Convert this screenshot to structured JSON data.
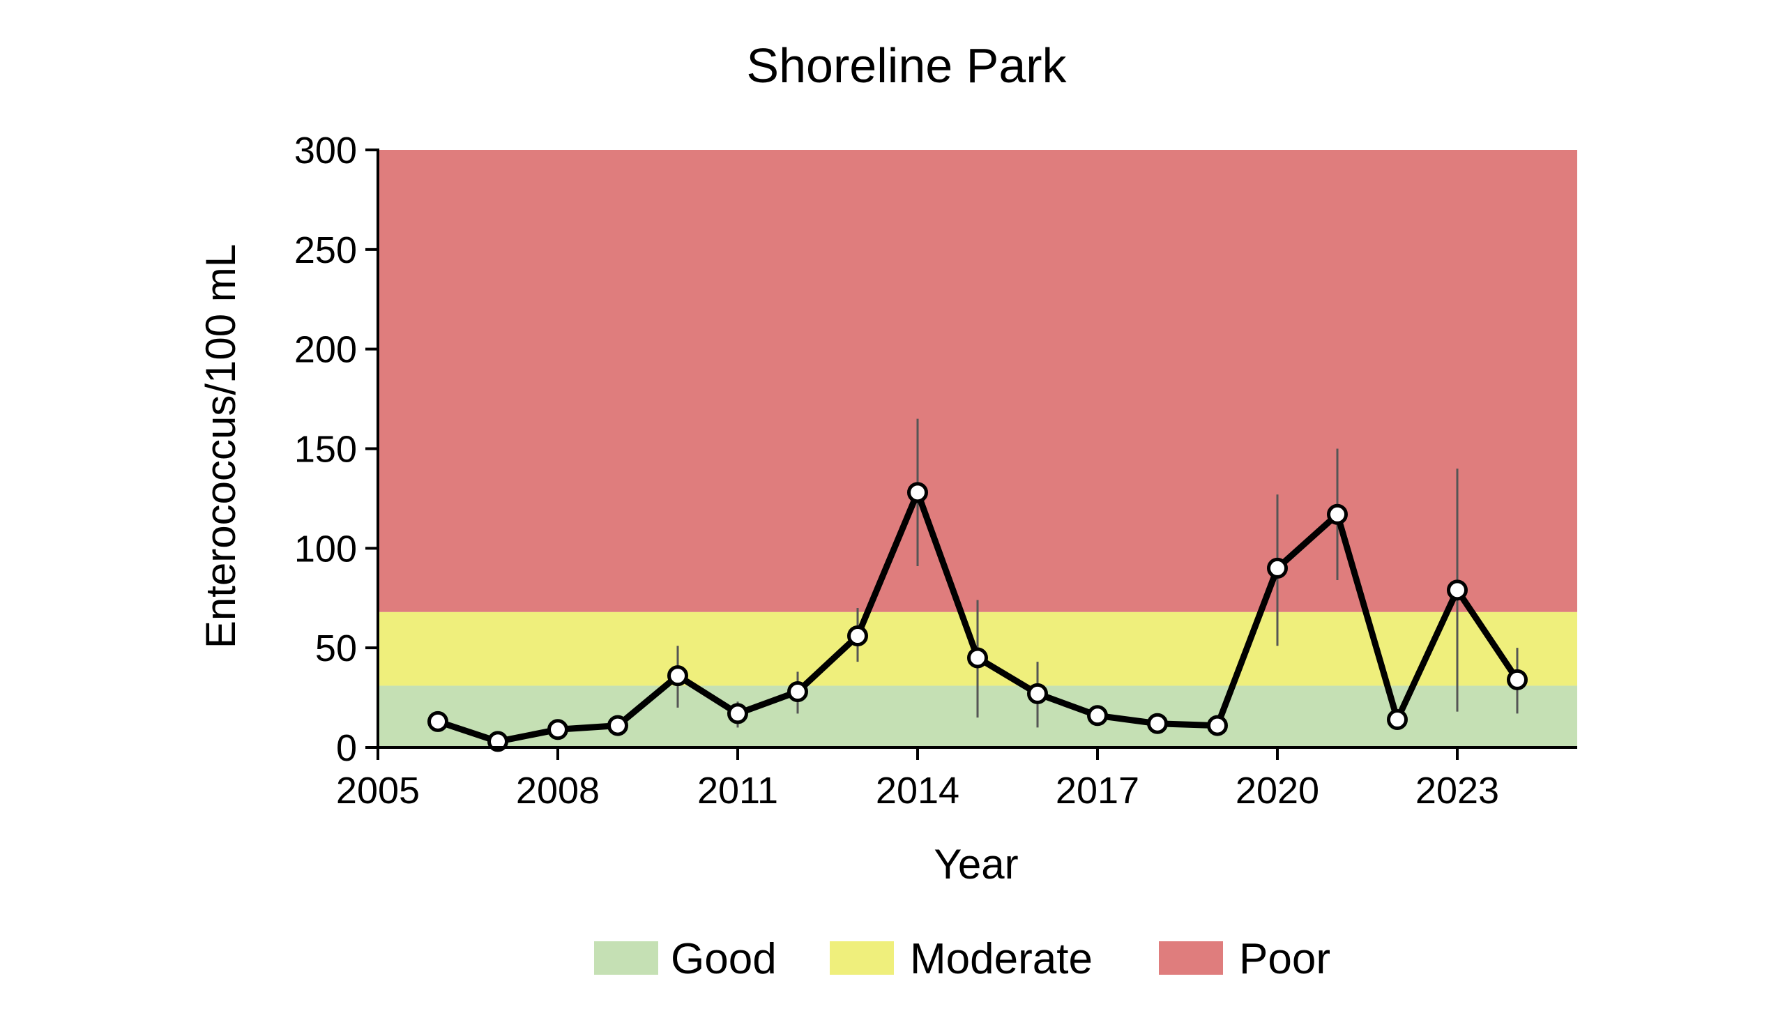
{
  "chart_data": {
    "type": "line",
    "title": "Shoreline Park",
    "xlabel": "Year",
    "ylabel": "Enterococcus/100 mL",
    "xlim": [
      2005,
      2025
    ],
    "ylim": [
      0,
      300
    ],
    "x_ticks": [
      2005,
      2008,
      2011,
      2014,
      2017,
      2020,
      2023
    ],
    "y_ticks": [
      0,
      50,
      100,
      150,
      200,
      250,
      300
    ],
    "x_tick_labels": [
      "2005",
      "2008",
      "2011",
      "2014",
      "2017",
      "2020",
      "2023"
    ],
    "y_tick_labels": [
      "0",
      "50",
      "100",
      "150",
      "200",
      "250",
      "300"
    ],
    "bands": [
      {
        "name": "Good",
        "from": 0,
        "to": 31,
        "color": "#c5e0b4"
      },
      {
        "name": "Moderate",
        "from": 31,
        "to": 68,
        "color": "#efef7c"
      },
      {
        "name": "Poor",
        "from": 68,
        "to": 300,
        "color": "#df7d7d"
      }
    ],
    "legend_position": "bottom",
    "grid": false,
    "series": [
      {
        "x": [
          2006,
          2007,
          2008,
          2009,
          2010,
          2011,
          2012,
          2013,
          2014,
          2015,
          2016,
          2017,
          2018,
          2019,
          2020,
          2021,
          2022,
          2023,
          2024
        ],
        "values": [
          13,
          3,
          9,
          11,
          36,
          17,
          28,
          56,
          128,
          45,
          27,
          16,
          12,
          11,
          90,
          117,
          14,
          79,
          34
        ],
        "error_low": [
          null,
          null,
          null,
          null,
          20,
          10,
          17,
          43,
          91,
          15,
          10,
          null,
          null,
          null,
          51,
          84,
          null,
          18,
          17
        ],
        "error_high": [
          null,
          null,
          null,
          null,
          51,
          23,
          38,
          70,
          165,
          74,
          43,
          null,
          null,
          null,
          127,
          150,
          null,
          140,
          50
        ],
        "line_color": "#000000",
        "marker_color": "#ffffff"
      }
    ]
  }
}
